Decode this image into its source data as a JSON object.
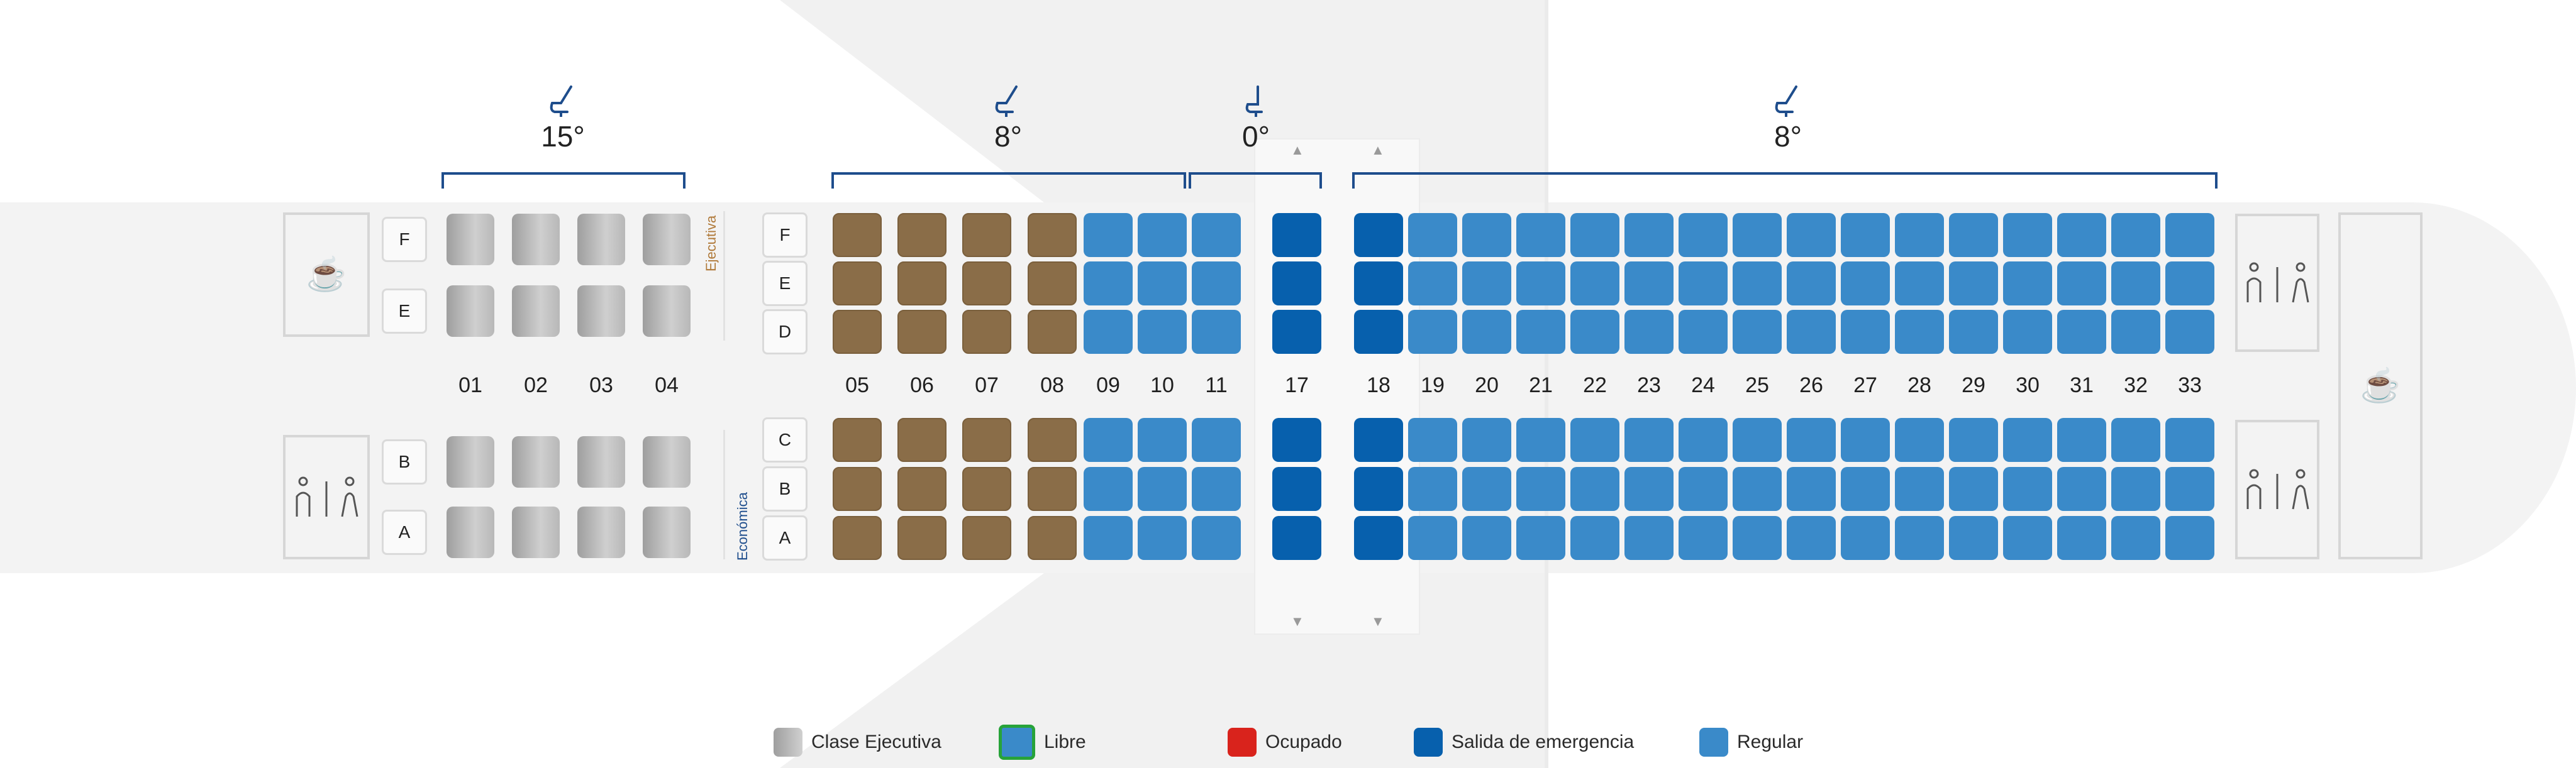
{
  "recline_groups": [
    {
      "label": "15°",
      "icon": "seat-recline-icon"
    },
    {
      "label": "8°",
      "icon": "seat-recline-icon"
    },
    {
      "label": "0°",
      "icon": "seat-upright-icon"
    },
    {
      "label": "8°",
      "icon": "seat-recline-icon"
    }
  ],
  "executive": {
    "letters_top": [
      "F",
      "E"
    ],
    "letters_bottom": [
      "B",
      "A"
    ],
    "rows": [
      "01",
      "02",
      "03",
      "04"
    ],
    "label": "Ejecutiva",
    "label_color": "#b07a3a"
  },
  "economy": {
    "letters_top": [
      "F",
      "E",
      "D"
    ],
    "letters_bottom": [
      "C",
      "B",
      "A"
    ],
    "rows": [
      "05",
      "06",
      "07",
      "08",
      "09",
      "10",
      "11",
      "17",
      "18",
      "19",
      "20",
      "21",
      "22",
      "23",
      "24",
      "25",
      "26",
      "27",
      "28",
      "29",
      "30",
      "31",
      "32",
      "33"
    ],
    "label": "Económica",
    "label_color": "#1e4d8c",
    "premium_rows": [
      "05",
      "06",
      "07",
      "08"
    ],
    "exit_rows": [
      "17",
      "18"
    ]
  },
  "icons": {
    "galley": "coffee-cup-icon",
    "lavatory": "lavatory-icon"
  },
  "legend": [
    {
      "label": "Clase Ejecutiva",
      "swatch": "executive",
      "color": "#b5b5b5"
    },
    {
      "label": "Libre",
      "swatch": "free",
      "color": "#3a8ac9"
    },
    {
      "label": "Ocupado",
      "swatch": "occupied",
      "color": "#d9231c"
    },
    {
      "label": "Salida de emergencia",
      "swatch": "exit",
      "color": "#0760ad"
    },
    {
      "label": "Regular",
      "swatch": "regular",
      "color": "#3a8ac9"
    }
  ],
  "colors": {
    "regular": "#3a8ac9",
    "exit": "#0760ad",
    "premium": "#8a6d48",
    "executive": "#b5b5b5",
    "bracket": "#1e4d8c"
  }
}
